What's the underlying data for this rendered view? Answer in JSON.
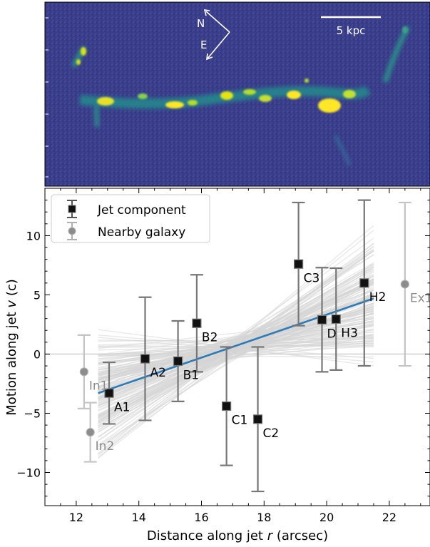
{
  "image_panel": {
    "compass_north": "N",
    "compass_east": "E",
    "scalebar_label": "5 kpc",
    "colors": {
      "background": "#3b3f8c",
      "mid": "#2a8a8b",
      "bright": "#fde725"
    }
  },
  "chart_data": {
    "type": "scatter",
    "xlabel_main": "Distance along jet ",
    "xlabel_var": "r",
    "xlabel_unit": " (arcsec)",
    "ylabel_main": "Motion along jet ",
    "ylabel_var": "v",
    "ylabel_unit": " (c)",
    "xlim": [
      11,
      23.3
    ],
    "ylim": [
      -12.8,
      14
    ],
    "xticks": [
      12,
      14,
      16,
      18,
      20,
      22
    ],
    "yticks": [
      -10,
      -5,
      0,
      5,
      10
    ],
    "legend_position": "top-left",
    "series": [
      {
        "name": "Jet component",
        "color": "#111111",
        "points": [
          {
            "label": "A1",
            "x": 13.05,
            "y": -3.3,
            "err": 2.6
          },
          {
            "label": "A2",
            "x": 14.2,
            "y": -0.4,
            "err": 5.2
          },
          {
            "label": "B1",
            "x": 15.25,
            "y": -0.6,
            "err": 3.4
          },
          {
            "label": "B2",
            "x": 15.85,
            "y": 2.6,
            "err": 4.1
          },
          {
            "label": "C1",
            "x": 16.8,
            "y": -4.4,
            "err": 5.0
          },
          {
            "label": "C2",
            "x": 17.8,
            "y": -5.5,
            "err": 6.1
          },
          {
            "label": "C3",
            "x": 19.1,
            "y": 7.6,
            "err": 5.2
          },
          {
            "label": "D",
            "x": 19.85,
            "y": 2.9,
            "err": 4.4
          },
          {
            "label": "H3",
            "x": 20.3,
            "y": 2.95,
            "err": 4.3
          },
          {
            "label": "H2",
            "x": 21.2,
            "y": 6.0,
            "err": 7.0
          }
        ]
      },
      {
        "name": "Nearby galaxy",
        "color": "#8c8c8c",
        "points": [
          {
            "label": "In1",
            "x": 12.25,
            "y": -1.5,
            "err": 3.1
          },
          {
            "label": "In2",
            "x": 12.45,
            "y": -6.6,
            "err": 2.5
          },
          {
            "label": "Ex1",
            "x": 22.5,
            "y": 5.9,
            "err": 6.9
          }
        ]
      }
    ],
    "fit_line": {
      "x": [
        12.7,
        21.5
      ],
      "y": [
        -3.3,
        4.7
      ],
      "color": "#2c7bb6"
    },
    "fit_samples_color": "#d6d6d6"
  }
}
